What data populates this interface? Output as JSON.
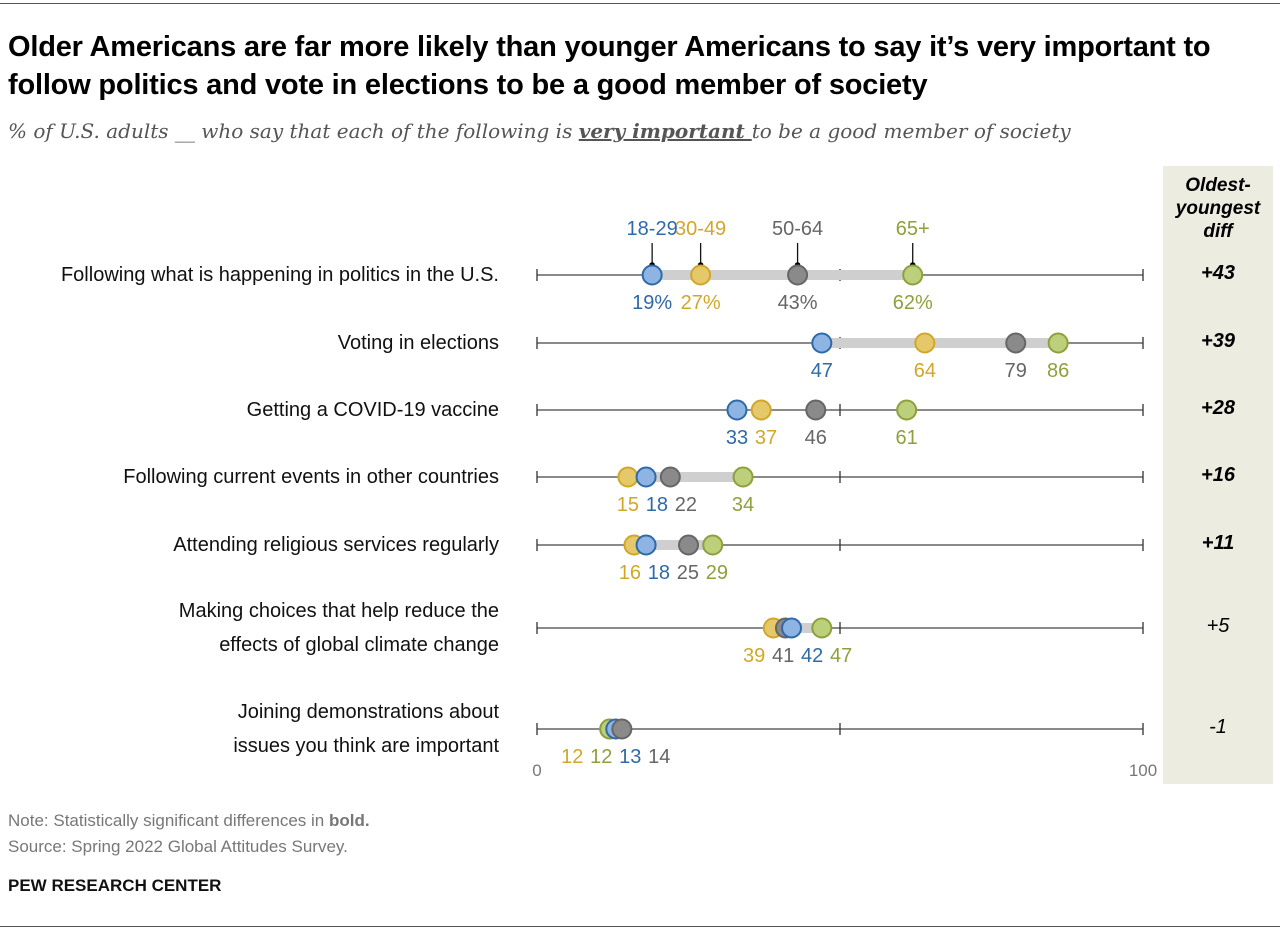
{
  "title": "Older Americans are far more likely than younger Americans to say it’s very important to follow politics and vote in elections to be a good member of society",
  "subtitle": {
    "pre": "% of U.S. adults __ who say that each of the following is ",
    "emph": "very important ",
    "post": "to be a good member of society"
  },
  "diff_header": "Oldest-youngest diff",
  "note": {
    "pre": "Note: Statistically significant differences in ",
    "bold": "bold."
  },
  "source": "Source: Spring 2022 Global Attitudes Survey.",
  "brand": "PEW RESEARCH CENTER",
  "chart_data": {
    "type": "dot",
    "xlim": [
      0,
      100
    ],
    "x_ticks": [
      0,
      50,
      100
    ],
    "x_tick_labels": [
      "0",
      "",
      "100"
    ],
    "series": [
      {
        "name": "18-29",
        "color": "#8db4e2",
        "stroke": "#2e6aa8",
        "text": "#2e6aa8"
      },
      {
        "name": "30-49",
        "color": "#e4c86a",
        "stroke": "#d1a72a",
        "text": "#d1a72a"
      },
      {
        "name": "50-64",
        "color": "#8a8a8a",
        "stroke": "#666666",
        "text": "#666666"
      },
      {
        "name": "65+",
        "color": "#bccf7a",
        "stroke": "#8ea03e",
        "text": "#8ea03e"
      }
    ],
    "categories": [
      {
        "label": [
          "Following what is happening in politics in the U.S."
        ],
        "values": [
          19,
          27,
          43,
          62
        ],
        "suffix": "%",
        "range_bar": true,
        "diff": "+43",
        "significant": true
      },
      {
        "label": [
          "Voting in elections"
        ],
        "values": [
          47,
          64,
          79,
          86
        ],
        "suffix": "",
        "range_bar": true,
        "diff": "+39",
        "significant": true
      },
      {
        "label": [
          "Getting a COVID-19 vaccine"
        ],
        "values": [
          33,
          37,
          46,
          61
        ],
        "suffix": "",
        "range_bar": false,
        "diff": "+28",
        "significant": true
      },
      {
        "label": [
          "Following current events in other countries"
        ],
        "values": [
          18,
          15,
          22,
          34
        ],
        "suffix": "",
        "range_bar": true,
        "diff": "+16",
        "significant": true
      },
      {
        "label": [
          "Attending religious services regularly"
        ],
        "values": [
          18,
          16,
          25,
          29
        ],
        "suffix": "",
        "range_bar": true,
        "diff": "+11",
        "significant": true
      },
      {
        "label": [
          "Making choices that help reduce the",
          "effects of global climate change"
        ],
        "values": [
          42,
          39,
          41,
          47
        ],
        "suffix": "",
        "range_bar": true,
        "diff": "+5",
        "significant": false
      },
      {
        "label": [
          "Joining demonstrations about",
          "issues you think are important"
        ],
        "values": [
          13,
          12,
          14,
          12
        ],
        "suffix": "",
        "range_bar": false,
        "diff": "-1",
        "significant": false
      }
    ]
  }
}
